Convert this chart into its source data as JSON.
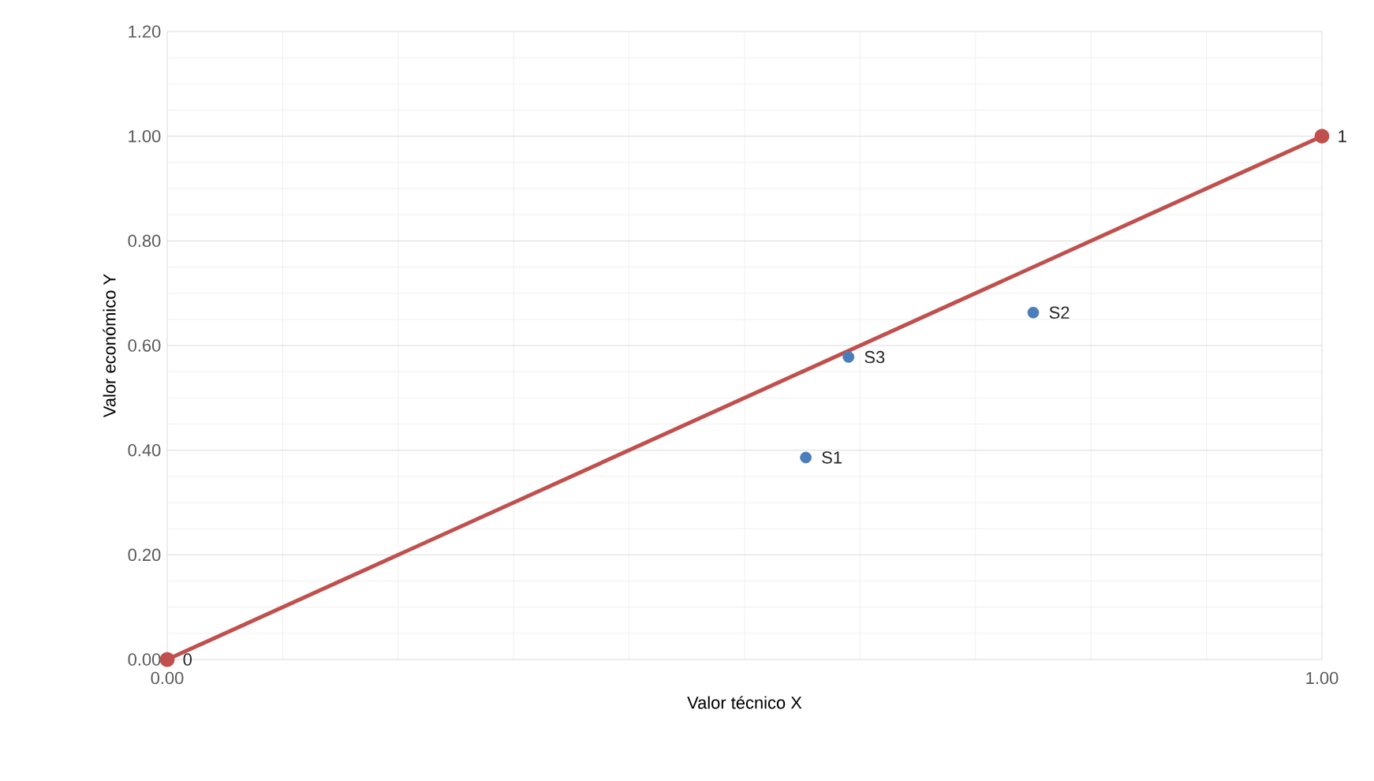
{
  "chart_data": {
    "type": "scatter",
    "xlabel": "Valor técnico X",
    "ylabel": "Valor económico Y",
    "xlim": [
      0,
      1
    ],
    "ylim": [
      0,
      1.2
    ],
    "xticks": [
      {
        "value": 0,
        "label": "0.00"
      },
      {
        "value": 1,
        "label": "1.00"
      }
    ],
    "yticks": [
      {
        "value": 0,
        "label": "0.00"
      },
      {
        "value": 0.2,
        "label": "0.20"
      },
      {
        "value": 0.4,
        "label": "0.40"
      },
      {
        "value": 0.6,
        "label": "0.60"
      },
      {
        "value": 0.8,
        "label": "0.80"
      },
      {
        "value": 1.0,
        "label": "1.00"
      },
      {
        "value": 1.2,
        "label": "1.20"
      }
    ],
    "grid": true,
    "marker": "circle",
    "series": [
      {
        "type": "line",
        "color": "#c0504d",
        "x": [
          0,
          1
        ],
        "values": [
          0,
          1
        ]
      },
      {
        "color": "#4a7ebb",
        "x": [
          0.553,
          0.59,
          0.75
        ],
        "values": [
          0.386,
          0.578,
          0.663
        ]
      }
    ],
    "annotations": [
      {
        "text": "0",
        "x": 0,
        "y": 0
      },
      {
        "text": "1",
        "x": 1,
        "y": 1
      },
      {
        "text": "S1",
        "x": 0.553,
        "y": 0.386
      },
      {
        "text": "S3",
        "x": 0.59,
        "y": 0.578
      },
      {
        "text": "S2",
        "x": 0.75,
        "y": 0.663
      }
    ]
  }
}
